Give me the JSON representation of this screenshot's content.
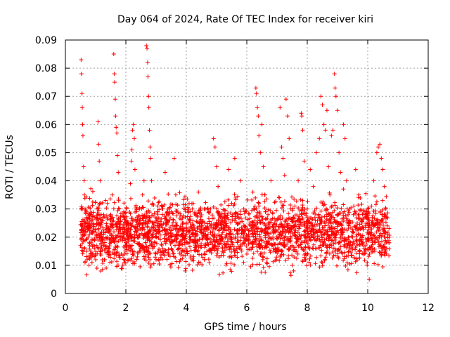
{
  "chart_data": {
    "type": "scatter",
    "title": "Day 064 of 2024, Rate Of TEC Index for receiver kiri",
    "xlabel": "GPS time / hours",
    "ylabel": "ROTI / TECUs",
    "xlim": [
      0,
      12
    ],
    "ylim": [
      0,
      0.09
    ],
    "grid": true,
    "marker": "plus",
    "marker_color": "#ff0000",
    "x_ticks": [
      {
        "value": 0,
        "label": "0"
      },
      {
        "value": 2,
        "label": "2"
      },
      {
        "value": 4,
        "label": "4"
      },
      {
        "value": 6,
        "label": "6"
      },
      {
        "value": 8,
        "label": "8"
      },
      {
        "value": 10,
        "label": "10"
      },
      {
        "value": 12,
        "label": "12"
      }
    ],
    "y_ticks": [
      {
        "value": 0,
        "label": "0"
      },
      {
        "value": 0.01,
        "label": "0.01"
      },
      {
        "value": 0.02,
        "label": "0.02"
      },
      {
        "value": 0.03,
        "label": "0.03"
      },
      {
        "value": 0.04,
        "label": "0.04"
      },
      {
        "value": 0.05,
        "label": "0.05"
      },
      {
        "value": 0.06,
        "label": "0.06"
      },
      {
        "value": 0.07,
        "label": "0.07"
      },
      {
        "value": 0.08,
        "label": "0.08"
      },
      {
        "value": 0.09,
        "label": "0.09"
      }
    ],
    "series": [
      {
        "name": "ROTI",
        "points": [
          [
            0.5,
            0.017
          ],
          [
            0.52,
            0.083
          ],
          [
            0.53,
            0.078
          ],
          [
            0.55,
            0.071
          ],
          [
            0.56,
            0.066
          ],
          [
            0.57,
            0.06
          ],
          [
            0.58,
            0.056
          ],
          [
            0.6,
            0.045
          ],
          [
            0.62,
            0.04
          ],
          [
            0.63,
            0.035
          ],
          [
            0.65,
            0.03
          ],
          [
            0.66,
            0.025
          ],
          [
            0.68,
            0.022
          ],
          [
            0.7,
            0.015
          ],
          [
            0.72,
            0.012
          ],
          [
            0.75,
            0.02
          ],
          [
            0.78,
            0.01
          ],
          [
            0.8,
            0.028
          ],
          [
            0.85,
            0.018
          ],
          [
            0.9,
            0.014
          ],
          [
            0.95,
            0.022
          ],
          [
            1.0,
            0.012
          ],
          [
            1.05,
            0.03
          ],
          [
            1.08,
            0.061
          ],
          [
            1.1,
            0.053
          ],
          [
            1.12,
            0.047
          ],
          [
            1.15,
            0.04
          ],
          [
            1.18,
            0.032
          ],
          [
            1.2,
            0.025
          ],
          [
            1.25,
            0.018
          ],
          [
            1.3,
            0.012
          ],
          [
            1.35,
            0.009
          ],
          [
            1.4,
            0.02
          ],
          [
            1.45,
            0.015
          ],
          [
            1.5,
            0.028
          ],
          [
            1.55,
            0.035
          ],
          [
            1.6,
            0.085
          ],
          [
            1.62,
            0.078
          ],
          [
            1.63,
            0.075
          ],
          [
            1.65,
            0.069
          ],
          [
            1.66,
            0.063
          ],
          [
            1.68,
            0.059
          ],
          [
            1.7,
            0.057
          ],
          [
            1.72,
            0.049
          ],
          [
            1.75,
            0.043
          ],
          [
            1.78,
            0.03
          ],
          [
            1.8,
            0.02
          ],
          [
            1.85,
            0.014
          ],
          [
            1.9,
            0.01
          ],
          [
            1.95,
            0.022
          ],
          [
            2.0,
            0.018
          ],
          [
            2.05,
            0.025
          ],
          [
            2.1,
            0.012
          ],
          [
            2.15,
            0.039
          ],
          [
            2.18,
            0.047
          ],
          [
            2.2,
            0.051
          ],
          [
            2.22,
            0.058
          ],
          [
            2.25,
            0.06
          ],
          [
            2.28,
            0.055
          ],
          [
            2.3,
            0.044
          ],
          [
            2.35,
            0.03
          ],
          [
            2.4,
            0.02
          ],
          [
            2.45,
            0.015
          ],
          [
            2.5,
            0.025
          ],
          [
            2.55,
            0.035
          ],
          [
            2.6,
            0.04
          ],
          [
            2.68,
            0.088
          ],
          [
            2.7,
            0.087
          ],
          [
            2.72,
            0.082
          ],
          [
            2.73,
            0.077
          ],
          [
            2.75,
            0.07
          ],
          [
            2.76,
            0.066
          ],
          [
            2.78,
            0.058
          ],
          [
            2.8,
            0.052
          ],
          [
            2.82,
            0.048
          ],
          [
            2.85,
            0.04
          ],
          [
            2.88,
            0.032
          ],
          [
            2.9,
            0.025
          ],
          [
            2.95,
            0.018
          ],
          [
            3.0,
            0.012
          ],
          [
            3.1,
            0.022
          ],
          [
            3.2,
            0.03
          ],
          [
            3.3,
            0.043
          ],
          [
            3.4,
            0.028
          ],
          [
            3.5,
            0.016
          ],
          [
            3.6,
            0.048
          ],
          [
            3.65,
            0.035
          ],
          [
            3.7,
            0.02
          ],
          [
            3.8,
            0.012
          ],
          [
            3.9,
            0.025
          ],
          [
            4.0,
            0.015
          ],
          [
            4.1,
            0.022
          ],
          [
            4.2,
            0.03
          ],
          [
            4.3,
            0.018
          ],
          [
            4.4,
            0.036
          ],
          [
            4.5,
            0.025
          ],
          [
            4.6,
            0.012
          ],
          [
            4.7,
            0.02
          ],
          [
            4.8,
            0.03
          ],
          [
            4.9,
            0.055
          ],
          [
            4.95,
            0.052
          ],
          [
            5.0,
            0.045
          ],
          [
            5.05,
            0.038
          ],
          [
            5.1,
            0.028
          ],
          [
            5.2,
            0.016
          ],
          [
            5.3,
            0.024
          ],
          [
            5.4,
            0.044
          ],
          [
            5.5,
            0.032
          ],
          [
            5.6,
            0.048
          ],
          [
            5.7,
            0.02
          ],
          [
            5.8,
            0.04
          ],
          [
            5.9,
            0.03
          ],
          [
            6.0,
            0.014
          ],
          [
            6.1,
            0.025
          ],
          [
            6.2,
            0.036
          ],
          [
            6.3,
            0.073
          ],
          [
            6.32,
            0.071
          ],
          [
            6.35,
            0.066
          ],
          [
            6.38,
            0.063
          ],
          [
            6.4,
            0.056
          ],
          [
            6.45,
            0.05
          ],
          [
            6.5,
            0.06
          ],
          [
            6.55,
            0.045
          ],
          [
            6.6,
            0.035
          ],
          [
            6.7,
            0.028
          ],
          [
            6.8,
            0.04
          ],
          [
            6.9,
            0.022
          ],
          [
            7.0,
            0.015
          ],
          [
            7.1,
            0.066
          ],
          [
            7.15,
            0.052
          ],
          [
            7.2,
            0.048
          ],
          [
            7.25,
            0.042
          ],
          [
            7.3,
            0.069
          ],
          [
            7.35,
            0.063
          ],
          [
            7.4,
            0.055
          ],
          [
            7.45,
            0.03
          ],
          [
            7.5,
            0.01
          ],
          [
            7.55,
            0.008
          ],
          [
            7.6,
            0.025
          ],
          [
            7.7,
            0.04
          ],
          [
            7.8,
            0.064
          ],
          [
            7.82,
            0.063
          ],
          [
            7.85,
            0.058
          ],
          [
            7.9,
            0.047
          ],
          [
            7.95,
            0.012
          ],
          [
            8.0,
            0.03
          ],
          [
            8.1,
            0.044
          ],
          [
            8.2,
            0.038
          ],
          [
            8.3,
            0.05
          ],
          [
            8.4,
            0.055
          ],
          [
            8.45,
            0.07
          ],
          [
            8.5,
            0.067
          ],
          [
            8.55,
            0.06
          ],
          [
            8.6,
            0.058
          ],
          [
            8.65,
            0.065
          ],
          [
            8.7,
            0.045
          ],
          [
            8.75,
            0.035
          ],
          [
            8.8,
            0.056
          ],
          [
            8.85,
            0.058
          ],
          [
            8.9,
            0.078
          ],
          [
            8.92,
            0.073
          ],
          [
            8.95,
            0.07
          ],
          [
            9.0,
            0.065
          ],
          [
            9.05,
            0.05
          ],
          [
            9.1,
            0.043
          ],
          [
            9.2,
            0.06
          ],
          [
            9.25,
            0.055
          ],
          [
            9.3,
            0.04
          ],
          [
            9.4,
            0.03
          ],
          [
            9.5,
            0.02
          ],
          [
            9.6,
            0.044
          ],
          [
            9.7,
            0.035
          ],
          [
            9.8,
            0.025
          ],
          [
            9.9,
            0.015
          ],
          [
            10.0,
            0.03
          ],
          [
            10.05,
            0.005
          ],
          [
            10.1,
            0.02
          ],
          [
            10.2,
            0.04
          ],
          [
            10.3,
            0.05
          ],
          [
            10.35,
            0.052
          ],
          [
            10.4,
            0.053
          ],
          [
            10.45,
            0.048
          ],
          [
            10.5,
            0.044
          ],
          [
            10.55,
            0.038
          ],
          [
            10.6,
            0.03
          ],
          [
            10.65,
            0.024
          ],
          [
            10.7,
            0.018
          ]
        ],
        "bands": [
          {
            "x_start": 0.5,
            "x_end": 10.72,
            "y_low": 0.005,
            "y_high": 0.038,
            "count": 2600
          }
        ]
      }
    ]
  }
}
